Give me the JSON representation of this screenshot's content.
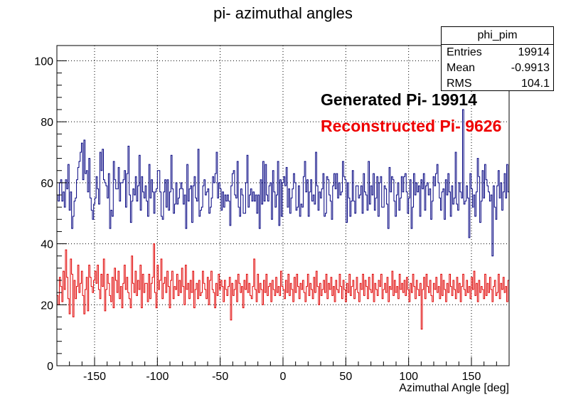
{
  "title": "pi- azimuthal angles",
  "stats_box": {
    "name": "phi_pim",
    "rows": [
      {
        "key": "Entries",
        "value": "19914"
      },
      {
        "key": "Mean",
        "value": "-0.9913"
      },
      {
        "key": "RMS",
        "value": "104.1"
      }
    ]
  },
  "annotations": {
    "generated": "Generated Pi- 19914",
    "reconstructed": "Reconstructed Pi- 9626"
  },
  "colors": {
    "generated": "#00007f",
    "reconstructed": "#e00000"
  },
  "chart_data": {
    "type": "line",
    "title": "pi- azimuthal angles",
    "xlabel": "Azimuthal Angle [deg]",
    "ylabel": "",
    "xlim": [
      -180,
      180
    ],
    "ylim": [
      0,
      105
    ],
    "xticks": [
      -150,
      -100,
      -50,
      0,
      50,
      100,
      150
    ],
    "yticks": [
      0,
      20,
      40,
      60,
      80,
      100
    ],
    "grid": true,
    "bin_width": 1,
    "series": [
      {
        "name": "Generated Pi- 19914",
        "color": "#00007f",
        "values": [
          56,
          54,
          60,
          61,
          54,
          57,
          52,
          61,
          58,
          66,
          51,
          57,
          45,
          49,
          54,
          55,
          61,
          65,
          67,
          70,
          73,
          61,
          74,
          63,
          64,
          57,
          68,
          55,
          51,
          48,
          53,
          55,
          62,
          58,
          53,
          70,
          64,
          71,
          61,
          60,
          59,
          55,
          63,
          45,
          51,
          49,
          67,
          61,
          58,
          58,
          65,
          54,
          60,
          60,
          61,
          64,
          52,
          63,
          72,
          56,
          47,
          54,
          58,
          56,
          62,
          54,
          59,
          69,
          51,
          62,
          57,
          55,
          59,
          54,
          49,
          66,
          55,
          61,
          57,
          50,
          57,
          58,
          64,
          64,
          57,
          49,
          48,
          57,
          61,
          52,
          61,
          51,
          57,
          69,
          58,
          50,
          53,
          60,
          53,
          55,
          58,
          60,
          58,
          53,
          56,
          45,
          66,
          54,
          58,
          59,
          47,
          59,
          62,
          55,
          54,
          71,
          49,
          51,
          52,
          59,
          61,
          56,
          57,
          58,
          50,
          52,
          55,
          62,
          60,
          63,
          70,
          55,
          60,
          58,
          51,
          57,
          52,
          56,
          54,
          56,
          54,
          46,
          59,
          63,
          64,
          56,
          55,
          67,
          52,
          49,
          58,
          56,
          50,
          50,
          60,
          69,
          52,
          56,
          58,
          54,
          57,
          54,
          56,
          50,
          56,
          45,
          61,
          53,
          67,
          54,
          66,
          56,
          54,
          59,
          60,
          48,
          64,
          57,
          52,
          56,
          67,
          46,
          61,
          49,
          60,
          62,
          59,
          65,
          52,
          58,
          50,
          55,
          58,
          63,
          60,
          51,
          52,
          59,
          49,
          53,
          52,
          62,
          67,
          57,
          61,
          49,
          57,
          61,
          54,
          56,
          53,
          70,
          59,
          51,
          57,
          55,
          58,
          63,
          49,
          50,
          62,
          61,
          56,
          54,
          48,
          59,
          63,
          58,
          63,
          55,
          60,
          56,
          57,
          67,
          62,
          61,
          47,
          60,
          55,
          49,
          54,
          64,
          54,
          50,
          59,
          59,
          55,
          56,
          59,
          50,
          63,
          57,
          56,
          51,
          67,
          53,
          59,
          56,
          63,
          51,
          55,
          62,
          49,
          60,
          62,
          52,
          52,
          59,
          58,
          53,
          45,
          65,
          57,
          62,
          61,
          54,
          49,
          56,
          60,
          51,
          55,
          62,
          57,
          62,
          63,
          57,
          50,
          55,
          61,
          45,
          52,
          63,
          56,
          60,
          57,
          59,
          49,
          61,
          58,
          63,
          51,
          59,
          60,
          56,
          58,
          48,
          54,
          62,
          59,
          63,
          66,
          60,
          55,
          51,
          57,
          58,
          48,
          61,
          56,
          63,
          57,
          49,
          59,
          53,
          55,
          70,
          53,
          51,
          60,
          57,
          55,
          84,
          53,
          54,
          59,
          55,
          42,
          63,
          58,
          52,
          56,
          49,
          57,
          68,
          62,
          47,
          54,
          64,
          55,
          66,
          61,
          59,
          57,
          54,
          56,
          36,
          59,
          52,
          48,
          59,
          64,
          55,
          60,
          51,
          57,
          63,
          55,
          66,
          57
        ]
      },
      {
        "name": "Reconstructed Pi- 9626",
        "color": "#e00000",
        "values": [
          23,
          20,
          29,
          26,
          21,
          31,
          25,
          38,
          29,
          22,
          17,
          35,
          30,
          16,
          28,
          22,
          26,
          33,
          24,
          27,
          31,
          23,
          17,
          25,
          29,
          18,
          33,
          29,
          26,
          24,
          28,
          31,
          27,
          33,
          25,
          22,
          30,
          26,
          35,
          18,
          25,
          30,
          27,
          23,
          21,
          29,
          19,
          32,
          28,
          24,
          31,
          22,
          26,
          19,
          27,
          33,
          25,
          29,
          24,
          22,
          19,
          36,
          27,
          24,
          31,
          23,
          28,
          25,
          33,
          19,
          30,
          24,
          27,
          27,
          21,
          30,
          22,
          27,
          29,
          40,
          24,
          19,
          33,
          25,
          28,
          35,
          22,
          27,
          29,
          24,
          31,
          26,
          19,
          28,
          31,
          22,
          26,
          25,
          30,
          23,
          28,
          24,
          32,
          26,
          20,
          33,
          25,
          27,
          22,
          28,
          24,
          31,
          19,
          25,
          27,
          22,
          28,
          23,
          24,
          31,
          27,
          25,
          22,
          29,
          20,
          28,
          31,
          25,
          24,
          19,
          27,
          23,
          30,
          25,
          28,
          26,
          21,
          28,
          25,
          23,
          26,
          29,
          15,
          27,
          23,
          25,
          28,
          21,
          30,
          27,
          24,
          26,
          19,
          28,
          25,
          30,
          24,
          27,
          23,
          22,
          26,
          35,
          25,
          21,
          30,
          24,
          27,
          25,
          20,
          28,
          24,
          30,
          23,
          26,
          27,
          21,
          28,
          25,
          23,
          29,
          24,
          26,
          23,
          31,
          26,
          25,
          22,
          28,
          24,
          30,
          23,
          27,
          25,
          21,
          29,
          24,
          30,
          26,
          22,
          27,
          25,
          28,
          24,
          21,
          26,
          30,
          23,
          27,
          25,
          22,
          29,
          24,
          31,
          26,
          20,
          27,
          23,
          25,
          28,
          24,
          30,
          22,
          27,
          25,
          29,
          23,
          26,
          21,
          28,
          25,
          24,
          30,
          26,
          22,
          28,
          25,
          21,
          27,
          24,
          30,
          23,
          26,
          28,
          22,
          25,
          29,
          24,
          21,
          27,
          25,
          30,
          23,
          28,
          26,
          22,
          29,
          25,
          24,
          30,
          21,
          27,
          25,
          23,
          28,
          26,
          30,
          22,
          25,
          27,
          24,
          29,
          21,
          26,
          25,
          31,
          23,
          28,
          24,
          26,
          22,
          30,
          25,
          27,
          24,
          28,
          23,
          29,
          25,
          21,
          27,
          24,
          30,
          26,
          22,
          28,
          25,
          23,
          27,
          12,
          25,
          29,
          22,
          30,
          26,
          24,
          28,
          23,
          21,
          27,
          25,
          29,
          24,
          26,
          22,
          30,
          23,
          28,
          25,
          21,
          27,
          24,
          30,
          26,
          23,
          28,
          25,
          22,
          29,
          24,
          27,
          21,
          26,
          30,
          25,
          23,
          28,
          24,
          26,
          22,
          29,
          25,
          31,
          23,
          27,
          21,
          28,
          24,
          26,
          25,
          22,
          30,
          23,
          27,
          24,
          29,
          25,
          21,
          26,
          28,
          23,
          24,
          30,
          22,
          27,
          25,
          29,
          24,
          26,
          21,
          28
        ]
      }
    ]
  }
}
